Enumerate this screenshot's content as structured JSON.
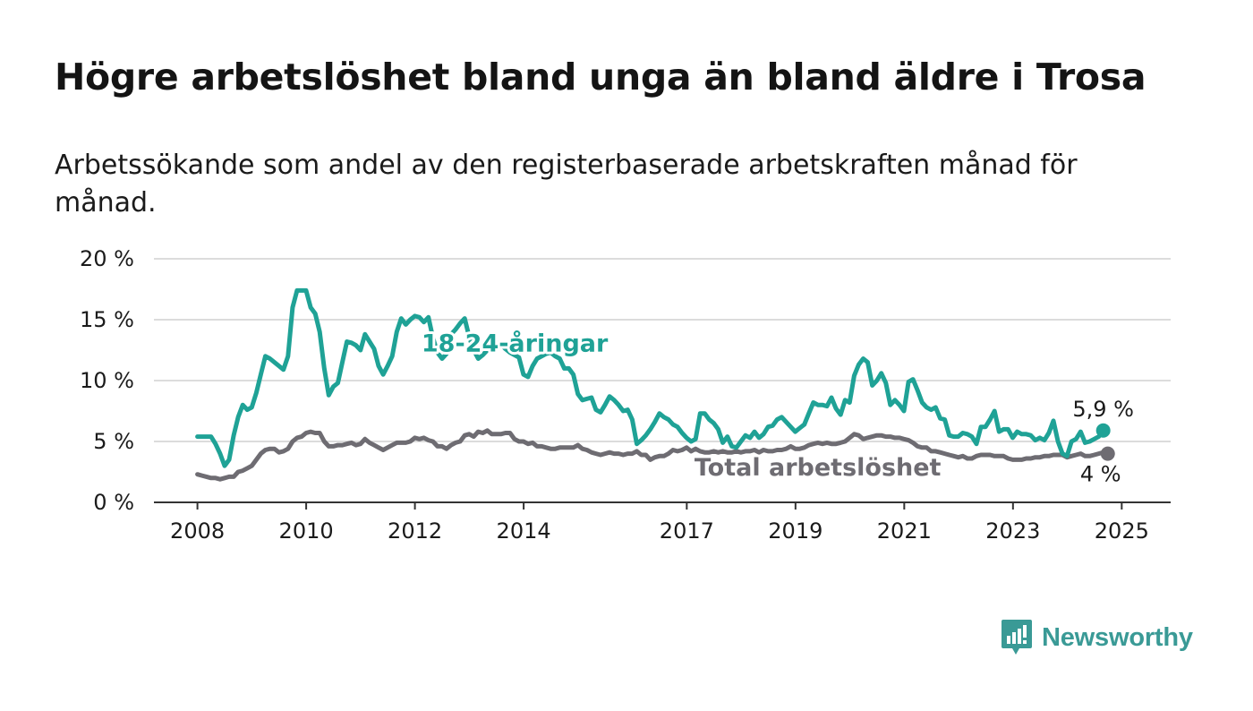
{
  "title": "Högre arbetslöshet bland unga än bland äldre i Trosa",
  "subtitle": "Arbetssökande som andel av den registerbaserade arbetskraften månad för månad.",
  "brand": {
    "name": "Newsworthy",
    "logo_icon": "bar-chart-speech-bubble-icon"
  },
  "colors": {
    "youth": "#1fa296",
    "total": "#6e6c72",
    "grid": "#dcdcdc",
    "axis": "#333333",
    "text": "#1b1b1b"
  },
  "chart_data": {
    "type": "line",
    "x_unit": "year (decimal, monthly points)",
    "x_start": 2008.0,
    "x_step": 0.0833,
    "xlim": [
      2007.2,
      2025.9
    ],
    "ylim": [
      0,
      20
    ],
    "grid": true,
    "y_ticks": [
      {
        "value": 0,
        "label": "0 %"
      },
      {
        "value": 5,
        "label": "5 %"
      },
      {
        "value": 10,
        "label": "10 %"
      },
      {
        "value": 15,
        "label": "15 %"
      },
      {
        "value": 20,
        "label": "20 %"
      }
    ],
    "x_ticks": [
      {
        "value": 2008,
        "label": "2008"
      },
      {
        "value": 2010,
        "label": "2010"
      },
      {
        "value": 2012,
        "label": "2012"
      },
      {
        "value": 2014,
        "label": "2014"
      },
      {
        "value": 2017,
        "label": "2017"
      },
      {
        "value": 2019,
        "label": "2019"
      },
      {
        "value": 2021,
        "label": "2021"
      },
      {
        "value": 2023,
        "label": "2023"
      },
      {
        "value": 2025,
        "label": "2025"
      }
    ],
    "series": [
      {
        "name": "18-24-åringar",
        "label": "18-24-åringar",
        "end_label": "5,9 %",
        "color": "#1fa296",
        "values": [
          5.4,
          5.4,
          5.4,
          5.4,
          4.8,
          4.0,
          3.0,
          3.5,
          5.5,
          7.0,
          8.0,
          7.6,
          7.8,
          9.0,
          10.5,
          12.0,
          11.8,
          11.5,
          11.2,
          10.9,
          12.0,
          16.0,
          17.4,
          17.4,
          17.4,
          16.0,
          15.5,
          14.0,
          11.0,
          8.8,
          9.5,
          9.8,
          11.5,
          13.2,
          13.1,
          12.9,
          12.5,
          13.8,
          13.2,
          12.6,
          11.2,
          10.5,
          11.2,
          12.0,
          14.0,
          15.1,
          14.6,
          15.0,
          15.3,
          15.2,
          14.8,
          15.2,
          13.5,
          12.3,
          11.8,
          12.2,
          13.8,
          14.2,
          14.7,
          15.1,
          13.6,
          12.5,
          11.8,
          12.1,
          12.5,
          12.8,
          13.1,
          13.0,
          12.6,
          12.3,
          12.1,
          11.9,
          10.5,
          10.3,
          11.2,
          11.8,
          12.0,
          12.2,
          12.3,
          12.0,
          11.8,
          11.0,
          11.0,
          10.5,
          8.9,
          8.4,
          8.5,
          8.6,
          7.6,
          7.4,
          8.0,
          8.7,
          8.4,
          8.0,
          7.5,
          7.6,
          6.8,
          4.8,
          5.1,
          5.5,
          6.0,
          6.6,
          7.3,
          7.0,
          6.8,
          6.4,
          6.2,
          5.7,
          5.3,
          5.0,
          5.2,
          7.3,
          7.3,
          6.8,
          6.5,
          6.0,
          4.9,
          5.4,
          4.6,
          4.5,
          5.0,
          5.5,
          5.3,
          5.8,
          5.3,
          5.6,
          6.2,
          6.3,
          6.8,
          7.0,
          6.6,
          6.2,
          5.8,
          6.1,
          6.4,
          7.3,
          8.2,
          8.0,
          8.0,
          7.9,
          8.6,
          7.7,
          7.2,
          8.4,
          8.2,
          10.4,
          11.3,
          11.8,
          11.5,
          9.6,
          10.0,
          10.6,
          9.8,
          8.0,
          8.4,
          8.0,
          7.5,
          9.9,
          10.1,
          9.2,
          8.2,
          7.8,
          7.6,
          7.8,
          6.9,
          6.8,
          5.5,
          5.4,
          5.4,
          5.7,
          5.6,
          5.4,
          4.8,
          6.2,
          6.2,
          6.8,
          7.5,
          5.8,
          6.0,
          6.0,
          5.3,
          5.8,
          5.6,
          5.6,
          5.5,
          5.1,
          5.3,
          5.1,
          5.7,
          6.7,
          5.0,
          4.0,
          3.8,
          5.0,
          5.2,
          5.8,
          4.9,
          5.0,
          5.2,
          5.4,
          5.9
        ]
      },
      {
        "name": "Total arbetslöshet",
        "label": "Total arbetslöshet",
        "end_label": "4 %",
        "color": "#6e6c72",
        "values": [
          2.3,
          2.2,
          2.1,
          2.0,
          2.0,
          1.9,
          2.0,
          2.1,
          2.1,
          2.5,
          2.6,
          2.8,
          3.0,
          3.5,
          4.0,
          4.3,
          4.4,
          4.4,
          4.1,
          4.2,
          4.4,
          5.0,
          5.3,
          5.4,
          5.7,
          5.8,
          5.7,
          5.7,
          5.0,
          4.6,
          4.6,
          4.7,
          4.7,
          4.8,
          4.9,
          4.7,
          4.8,
          5.2,
          4.9,
          4.7,
          4.5,
          4.3,
          4.5,
          4.7,
          4.9,
          4.9,
          4.9,
          5.0,
          5.3,
          5.2,
          5.3,
          5.1,
          5.0,
          4.6,
          4.6,
          4.4,
          4.7,
          4.9,
          5.0,
          5.5,
          5.6,
          5.4,
          5.8,
          5.7,
          5.9,
          5.6,
          5.6,
          5.6,
          5.7,
          5.7,
          5.2,
          5.0,
          5.0,
          4.8,
          4.9,
          4.6,
          4.6,
          4.5,
          4.4,
          4.4,
          4.5,
          4.5,
          4.5,
          4.5,
          4.7,
          4.4,
          4.3,
          4.1,
          4.0,
          3.9,
          4.0,
          4.1,
          4.0,
          4.0,
          3.9,
          4.0,
          4.0,
          4.2,
          3.9,
          3.9,
          3.5,
          3.7,
          3.8,
          3.8,
          4.0,
          4.3,
          4.2,
          4.3,
          4.5,
          4.2,
          4.4,
          4.2,
          4.1,
          4.1,
          4.2,
          4.1,
          4.2,
          4.1,
          4.1,
          4.2,
          4.1,
          4.2,
          4.2,
          4.3,
          4.1,
          4.3,
          4.2,
          4.2,
          4.3,
          4.3,
          4.4,
          4.6,
          4.4,
          4.4,
          4.5,
          4.7,
          4.8,
          4.9,
          4.8,
          4.9,
          4.8,
          4.8,
          4.9,
          5.0,
          5.3,
          5.6,
          5.5,
          5.2,
          5.3,
          5.4,
          5.5,
          5.5,
          5.4,
          5.4,
          5.3,
          5.3,
          5.2,
          5.1,
          4.9,
          4.6,
          4.5,
          4.5,
          4.2,
          4.2,
          4.1,
          4.0,
          3.9,
          3.8,
          3.7,
          3.8,
          3.6,
          3.6,
          3.8,
          3.9,
          3.9,
          3.9,
          3.8,
          3.8,
          3.8,
          3.6,
          3.5,
          3.5,
          3.5,
          3.6,
          3.6,
          3.7,
          3.7,
          3.8,
          3.8,
          3.9,
          3.9,
          3.9,
          3.7,
          3.8,
          3.9,
          4.0,
          3.8,
          3.8,
          3.9,
          4.0,
          4.1,
          4.0
        ]
      }
    ]
  }
}
